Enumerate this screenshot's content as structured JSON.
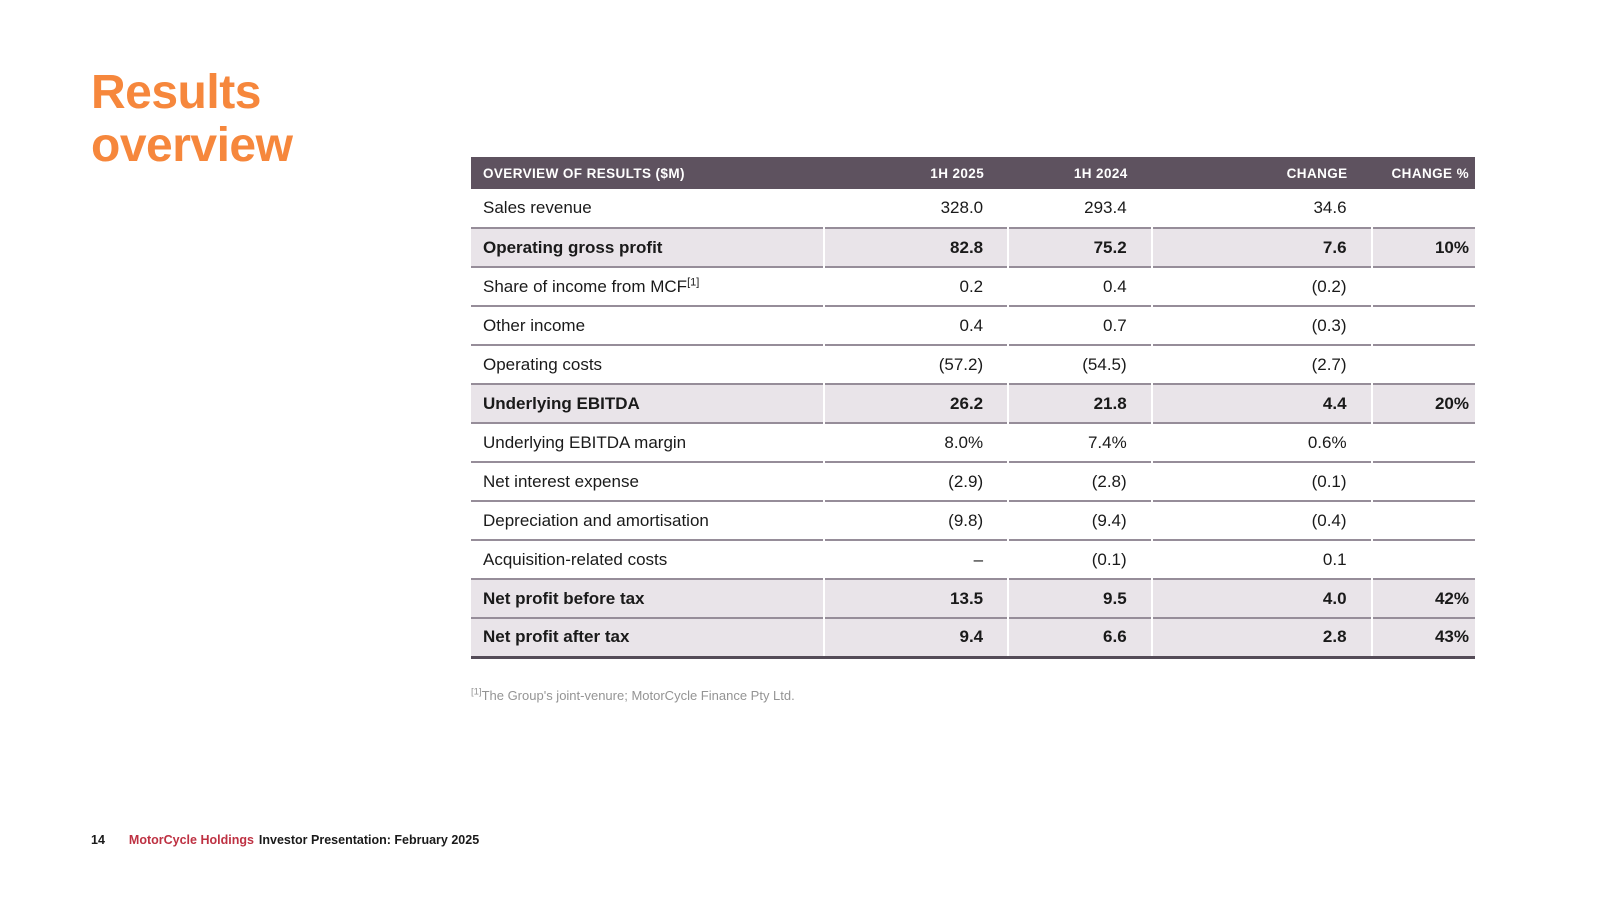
{
  "slide": {
    "title_lines": [
      "Results",
      "overview"
    ]
  },
  "colors": {
    "accent_orange": "#F6873C",
    "table_header_bg": "#5E525F",
    "highlight_row_bg": "#E9E4E9",
    "brand_red": "#BE3142"
  },
  "table": {
    "header": [
      "OVERVIEW OF RESULTS ($M)",
      "1H 2025",
      "1H 2024",
      "CHANGE",
      "CHANGE %"
    ],
    "rows": [
      {
        "label": "Sales revenue",
        "sup": "",
        "v2025": "328.0",
        "v2024": "293.4",
        "change": "34.6",
        "change_pct": "",
        "highlight": false
      },
      {
        "label": "Operating gross profit",
        "sup": "",
        "v2025": "82.8",
        "v2024": "75.2",
        "change": "7.6",
        "change_pct": "10%",
        "highlight": true
      },
      {
        "label": "Share of income from MCF",
        "sup": "[1]",
        "v2025": "0.2",
        "v2024": "0.4",
        "change": "(0.2)",
        "change_pct": "",
        "highlight": false
      },
      {
        "label": "Other income",
        "sup": "",
        "v2025": "0.4",
        "v2024": "0.7",
        "change": "(0.3)",
        "change_pct": "",
        "highlight": false
      },
      {
        "label": "Operating costs",
        "sup": "",
        "v2025": "(57.2)",
        "v2024": "(54.5)",
        "change": "(2.7)",
        "change_pct": "",
        "highlight": false
      },
      {
        "label": "Underlying EBITDA",
        "sup": "",
        "v2025": "26.2",
        "v2024": "21.8",
        "change": "4.4",
        "change_pct": "20%",
        "highlight": true
      },
      {
        "label": "Underlying EBITDA margin",
        "sup": "",
        "v2025": "8.0%",
        "v2024": "7.4%",
        "change": "0.6%",
        "change_pct": "",
        "highlight": false
      },
      {
        "label": "Net interest expense",
        "sup": "",
        "v2025": "(2.9)",
        "v2024": "(2.8)",
        "change": "(0.1)",
        "change_pct": "",
        "highlight": false
      },
      {
        "label": "Depreciation and amortisation",
        "sup": "",
        "v2025": "(9.8)",
        "v2024": "(9.4)",
        "change": "(0.4)",
        "change_pct": "",
        "highlight": false
      },
      {
        "label": "Acquisition-related costs",
        "sup": "",
        "v2025": "–",
        "v2024": "(0.1)",
        "change": "0.1",
        "change_pct": "",
        "highlight": false
      },
      {
        "label": "Net profit before tax",
        "sup": "",
        "v2025": "13.5",
        "v2024": "9.5",
        "change": "4.0",
        "change_pct": "42%",
        "highlight": true
      },
      {
        "label": "Net profit after tax",
        "sup": "",
        "v2025": "9.4",
        "v2024": "6.6",
        "change": "2.8",
        "change_pct": "43%",
        "highlight": true
      }
    ]
  },
  "footnote": {
    "marker": "[1]",
    "text": "The Group's joint-venure; MotorCycle Finance Pty Ltd."
  },
  "footer": {
    "page_number": "14",
    "brand": "MotorCycle Holdings",
    "text": "Investor Presentation: February 2025"
  }
}
